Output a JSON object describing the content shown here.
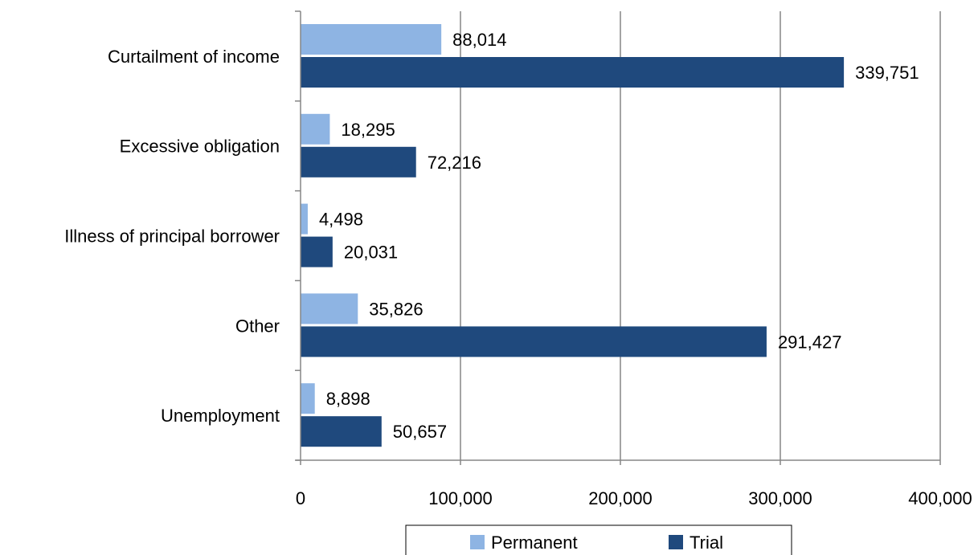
{
  "chart_data": {
    "type": "bar",
    "orientation": "horizontal",
    "categories": [
      "Curtailment of income",
      "Excessive obligation",
      "Illness of principal borrower",
      "Other",
      "Unemployment"
    ],
    "series": [
      {
        "name": "Permanent",
        "color": "#8EB4E3",
        "values": [
          88014,
          18295,
          4498,
          35826,
          8898
        ],
        "labels": [
          "88,014",
          "18,295",
          "4,498",
          "35,826",
          "8,898"
        ]
      },
      {
        "name": "Trial",
        "color": "#1F497D",
        "values": [
          339751,
          72216,
          20031,
          291427,
          50657
        ],
        "labels": [
          "339,751",
          "72,216",
          "20,031",
          "291,427",
          "50,657"
        ]
      }
    ],
    "xlim": [
      0,
      400000
    ],
    "x_ticks": [
      0,
      100000,
      200000,
      300000,
      400000
    ],
    "x_tick_labels": [
      "0",
      "100,000",
      "200,000",
      "300,000",
      "400,000"
    ],
    "grid": "vertical",
    "legend": {
      "position": "bottom",
      "entries": [
        "Permanent",
        "Trial"
      ]
    }
  }
}
